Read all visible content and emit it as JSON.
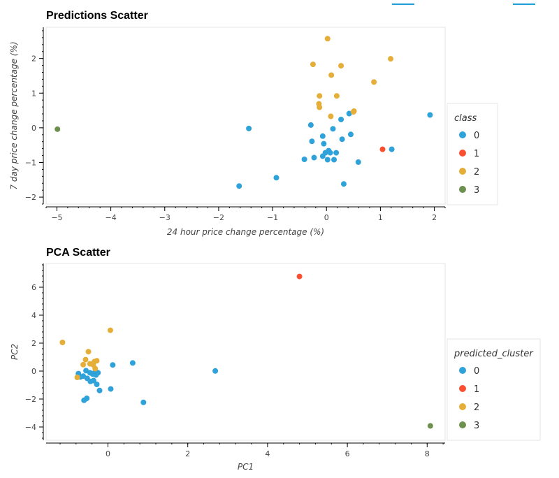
{
  "colors": {
    "class_0": "#30a2da",
    "class_1": "#fc4f30",
    "class_2": "#e5ae38",
    "class_3": "#6d904f",
    "frame": "#e5e5e5",
    "axis": "#000000",
    "toolbar": "#1f9fd8"
  },
  "chart_data": [
    {
      "type": "scatter",
      "title": "Predictions Scatter",
      "xlabel": "24 hour price change percentage (%)",
      "ylabel": "7 day price change percentage (%)",
      "xlim": [
        -5.2,
        2.2
      ],
      "ylim": [
        -2.2,
        2.9
      ],
      "xticks": [
        "−5",
        "−4",
        "−3",
        "−2",
        "−1",
        "0",
        "1",
        "2"
      ],
      "yticks": [
        "−2",
        "−1",
        "0",
        "1",
        "2"
      ],
      "grid": false,
      "legend_title": "class",
      "legend_position": "right",
      "legend": [
        "0",
        "1",
        "2",
        "3"
      ],
      "series": [
        {
          "name": "0",
          "points": [
            [
              -1.62,
              -1.68
            ],
            [
              -0.93,
              -1.44
            ],
            [
              -1.44,
              -0.02
            ],
            [
              -0.41,
              -0.91
            ],
            [
              -0.23,
              -0.86
            ],
            [
              -0.07,
              -0.82
            ],
            [
              0.02,
              -0.92
            ],
            [
              0.14,
              -0.92
            ],
            [
              0.59,
              -0.99
            ],
            [
              0.32,
              -1.62
            ],
            [
              -0.02,
              -0.72
            ],
            [
              0.07,
              -0.72
            ],
            [
              0.18,
              -0.72
            ],
            [
              0.04,
              -0.66
            ],
            [
              -0.27,
              -0.39
            ],
            [
              -0.05,
              -0.46
            ],
            [
              -0.07,
              -0.24
            ],
            [
              0.29,
              -0.33
            ],
            [
              0.45,
              -0.19
            ],
            [
              0.12,
              -0.03
            ],
            [
              -0.29,
              0.08
            ],
            [
              0.27,
              0.24
            ],
            [
              0.42,
              0.41
            ],
            [
              1.21,
              -0.62
            ],
            [
              1.92,
              0.37
            ]
          ]
        },
        {
          "name": "1",
          "points": [
            [
              1.04,
              -0.62
            ]
          ]
        },
        {
          "name": "2",
          "points": [
            [
              0.02,
              2.57
            ],
            [
              -0.25,
              1.83
            ],
            [
              0.27,
              1.79
            ],
            [
              1.19,
              1.99
            ],
            [
              0.09,
              1.52
            ],
            [
              0.88,
              1.32
            ],
            [
              -0.13,
              0.92
            ],
            [
              0.19,
              0.92
            ],
            [
              -0.14,
              0.69
            ],
            [
              -0.13,
              0.59
            ],
            [
              0.51,
              0.48
            ],
            [
              0.5,
              0.46
            ],
            [
              0.08,
              0.33
            ]
          ]
        },
        {
          "name": "3",
          "points": [
            [
              -4.99,
              -0.04
            ]
          ]
        }
      ]
    },
    {
      "type": "scatter",
      "title": "PCA Scatter",
      "xlabel": "PC1",
      "ylabel": "PC2",
      "xlim": [
        -1.55,
        8.45
      ],
      "ylim": [
        -4.95,
        7.7
      ],
      "xticks": [
        "0",
        "2",
        "4",
        "6",
        "8"
      ],
      "yticks": [
        "−4",
        "−2",
        "0",
        "2",
        "4",
        "6"
      ],
      "grid": false,
      "legend_title": "predicted_cluster",
      "legend_position": "right",
      "legend": [
        "0",
        "1",
        "2",
        "3"
      ],
      "series": [
        {
          "name": "0",
          "points": [
            [
              -0.74,
              -0.18
            ],
            [
              -0.62,
              -0.36
            ],
            [
              -0.55,
              0.03
            ],
            [
              -0.45,
              -0.12
            ],
            [
              -0.38,
              -0.22
            ],
            [
              -0.3,
              -0.28
            ],
            [
              -0.52,
              -0.52
            ],
            [
              -0.44,
              -0.74
            ],
            [
              -0.36,
              -0.68
            ],
            [
              -0.28,
              -0.95
            ],
            [
              -0.21,
              -1.39
            ],
            [
              -0.6,
              -2.09
            ],
            [
              -0.53,
              -1.95
            ],
            [
              -0.69,
              -0.42
            ],
            [
              -0.35,
              -0.15
            ],
            [
              -0.25,
              -0.12
            ],
            [
              0.12,
              0.44
            ],
            [
              0.62,
              0.58
            ],
            [
              0.07,
              -1.28
            ],
            [
              0.89,
              -2.24
            ],
            [
              2.69,
              0.01
            ]
          ]
        },
        {
          "name": "1",
          "points": [
            [
              4.8,
              6.77
            ]
          ]
        },
        {
          "name": "2",
          "points": [
            [
              -1.14,
              2.05
            ],
            [
              0.06,
              2.92
            ],
            [
              -0.49,
              1.39
            ],
            [
              -0.56,
              0.82
            ],
            [
              -0.28,
              0.74
            ],
            [
              -0.34,
              0.68
            ],
            [
              -0.45,
              0.52
            ],
            [
              -0.62,
              0.46
            ],
            [
              -0.37,
              0.45
            ],
            [
              -0.32,
              0.18
            ],
            [
              -0.77,
              -0.45
            ]
          ]
        },
        {
          "name": "3",
          "points": [
            [
              8.08,
              -3.92
            ]
          ]
        }
      ]
    }
  ]
}
